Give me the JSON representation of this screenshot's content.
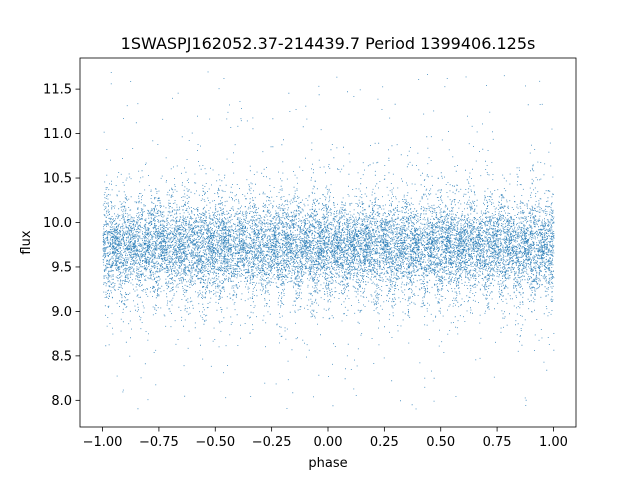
{
  "chart_data": {
    "type": "scatter",
    "title": "1SWASPJ162052.37-214439.7 Period 1399406.125s",
    "xlabel": "phase",
    "ylabel": "flux",
    "xlim": [
      -1.1,
      1.1
    ],
    "ylim": [
      7.7,
      11.85
    ],
    "xticks": [
      -1.0,
      -0.75,
      -0.5,
      -0.25,
      0.0,
      0.25,
      0.5,
      0.75,
      1.0
    ],
    "xtick_labels": [
      "−1.00",
      "−0.75",
      "−0.50",
      "−0.25",
      "0.00",
      "0.25",
      "0.50",
      "0.75",
      "1.00"
    ],
    "yticks": [
      8.0,
      8.5,
      9.0,
      9.5,
      10.0,
      10.5,
      11.0,
      11.5
    ],
    "ytick_labels": [
      "8.0",
      "8.5",
      "9.0",
      "9.5",
      "10.0",
      "10.5",
      "11.0",
      "11.5"
    ],
    "grid": false,
    "series": [
      {
        "color": "#1f77b4",
        "point_count": 16000,
        "x_range": [
          -1.0,
          1.0
        ],
        "y_median": 9.75,
        "y_core_range": [
          9.2,
          10.35
        ],
        "y_full_range": [
          7.9,
          11.7
        ]
      }
    ]
  }
}
